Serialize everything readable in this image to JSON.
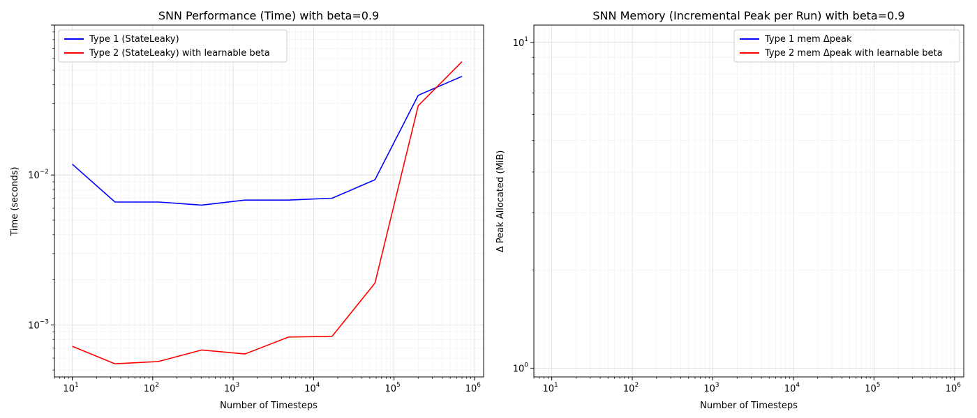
{
  "chart_data": [
    {
      "type": "line",
      "title": "SNN Performance (Time) with beta=0.9",
      "xlabel": "Number of Timesteps",
      "ylabel": "Time (seconds)",
      "xscale": "log",
      "yscale": "log",
      "xlim": [
        6,
        1300000
      ],
      "ylim": [
        0.00045,
        0.1
      ],
      "grid": true,
      "legend": "upper-left",
      "xticks": [
        {
          "base": "10",
          "exp": "1"
        },
        {
          "base": "10",
          "exp": "2"
        },
        {
          "base": "10",
          "exp": "3"
        },
        {
          "base": "10",
          "exp": "4"
        },
        {
          "base": "10",
          "exp": "5"
        },
        {
          "base": "10",
          "exp": "6"
        }
      ],
      "yticks": [
        {
          "base": "10",
          "exp": "−3"
        },
        {
          "base": "10",
          "exp": "−2"
        }
      ],
      "series": [
        {
          "name": "Type 1 (StateLeaky)",
          "color": "#0000ff",
          "x": [
            10,
            34,
            118,
            406,
            1400,
            4900,
            17000,
            58000,
            200000,
            700000
          ],
          "y": [
            0.0118,
            0.0066,
            0.0066,
            0.0063,
            0.0068,
            0.0068,
            0.007,
            0.0093,
            0.034,
            0.0455
          ]
        },
        {
          "name": "Type 2 (StateLeaky) with learnable beta",
          "color": "#ff0000",
          "x": [
            10,
            34,
            118,
            406,
            1400,
            4900,
            17000,
            58000,
            200000,
            700000
          ],
          "y": [
            0.00072,
            0.00055,
            0.00057,
            0.00068,
            0.00064,
            0.00083,
            0.00084,
            0.0019,
            0.029,
            0.057
          ]
        }
      ]
    },
    {
      "type": "line",
      "title": "SNN Memory (Incremental Peak per Run) with beta=0.9",
      "xlabel": "Number of Timesteps",
      "ylabel": "Δ Peak Allocated (MiB)",
      "xscale": "log",
      "yscale": "log",
      "xlim": [
        6,
        1300000
      ],
      "ylim": [
        0.94,
        11.3
      ],
      "grid": true,
      "legend": "upper-right",
      "xticks": [
        {
          "base": "10",
          "exp": "1"
        },
        {
          "base": "10",
          "exp": "2"
        },
        {
          "base": "10",
          "exp": "3"
        },
        {
          "base": "10",
          "exp": "4"
        },
        {
          "base": "10",
          "exp": "5"
        },
        {
          "base": "10",
          "exp": "6"
        }
      ],
      "yticks": [
        {
          "base": "10",
          "exp": "0"
        },
        {
          "base": "10",
          "exp": "1"
        }
      ],
      "series": [
        {
          "name": "Type 1 mem Δpeak",
          "color": "#0000ff",
          "x": [],
          "y": []
        },
        {
          "name": "Type 2 mem Δpeak with learnable beta",
          "color": "#ff0000",
          "x": [],
          "y": []
        }
      ]
    }
  ]
}
